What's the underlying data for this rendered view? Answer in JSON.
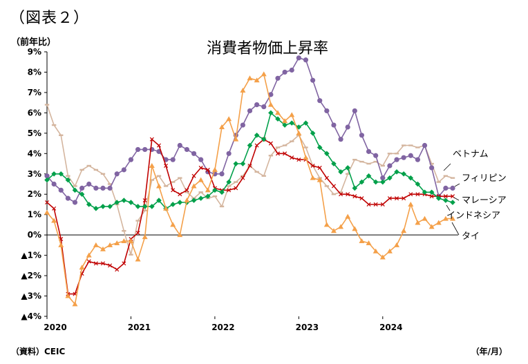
{
  "figure_label": "（図表２）",
  "y_unit_label": "（前年比）",
  "source_label": "（資料）CEIC",
  "x_unit_label": "（年/月）",
  "chart_data": {
    "type": "line",
    "title": "消費者物価上昇率",
    "ylim": [
      -4,
      9
    ],
    "yticks": [
      {
        "value": 9,
        "label": "9%"
      },
      {
        "value": 8,
        "label": "8%"
      },
      {
        "value": 7,
        "label": "7%"
      },
      {
        "value": 6,
        "label": "6%"
      },
      {
        "value": 5,
        "label": "5%"
      },
      {
        "value": 4,
        "label": "4%"
      },
      {
        "value": 3,
        "label": "3%"
      },
      {
        "value": 2,
        "label": "2%"
      },
      {
        "value": 1,
        "label": "1%"
      },
      {
        "value": 0,
        "label": "0%"
      },
      {
        "value": -1,
        "label": "▲1%"
      },
      {
        "value": -2,
        "label": "▲2%"
      },
      {
        "value": -3,
        "label": "▲3%"
      },
      {
        "value": -4,
        "label": "▲4%"
      }
    ],
    "xticks": [
      {
        "index": 0,
        "label": "2020"
      },
      {
        "index": 12,
        "label": "2021"
      },
      {
        "index": 24,
        "label": "2022"
      },
      {
        "index": 36,
        "label": "2023"
      },
      {
        "index": 48,
        "label": "2024"
      }
    ],
    "n_months": 59,
    "x_start": "2020-01",
    "grid": false,
    "series": [
      {
        "name": "ベトナム",
        "color": "#D4B59E",
        "marker": "dash",
        "values": [
          6.4,
          5.4,
          4.9,
          2.9,
          2.4,
          3.2,
          3.4,
          3.2,
          3.0,
          2.5,
          1.5,
          0.2,
          -0.97,
          0.7,
          1.2,
          2.7,
          2.9,
          2.4,
          2.6,
          2.8,
          2.1,
          1.8,
          2.1,
          1.8,
          1.9,
          1.4,
          2.4,
          2.6,
          2.9,
          3.4,
          3.1,
          2.9,
          3.9,
          4.3,
          4.4,
          4.6,
          4.9,
          4.3,
          3.4,
          2.8,
          2.4,
          2.0,
          2.1,
          3.0,
          3.7,
          3.6,
          3.5,
          3.6,
          3.4,
          4.0,
          4.0,
          4.4,
          4.4,
          4.3,
          4.4,
          3.5,
          2.6,
          2.9,
          2.8
        ]
      },
      {
        "name": "フィリピン",
        "color": "#8064A2",
        "marker": "circle",
        "values": [
          2.9,
          2.5,
          2.2,
          1.8,
          1.6,
          2.3,
          2.5,
          2.3,
          2.3,
          2.3,
          3.0,
          3.2,
          3.7,
          4.2,
          4.2,
          4.2,
          4.1,
          3.7,
          3.7,
          4.4,
          4.2,
          4.0,
          3.7,
          3.1,
          3.0,
          3.0,
          4.0,
          4.9,
          5.4,
          6.1,
          6.4,
          6.3,
          6.9,
          7.7,
          8.0,
          8.1,
          8.7,
          8.6,
          7.6,
          6.6,
          6.1,
          5.4,
          4.7,
          5.3,
          6.1,
          4.9,
          4.1,
          3.9,
          2.8,
          3.4,
          3.7,
          3.8,
          3.9,
          3.7,
          4.4,
          3.3,
          1.9,
          2.3,
          2.3
        ]
      },
      {
        "name": "マレーシア",
        "color": "#C00000",
        "marker": "x",
        "values": [
          1.6,
          1.3,
          -0.2,
          -2.9,
          -2.9,
          -1.9,
          -1.3,
          -1.4,
          -1.4,
          -1.5,
          -1.7,
          -1.4,
          -0.2,
          0.1,
          1.7,
          4.7,
          4.4,
          3.4,
          2.2,
          2.0,
          2.2,
          2.9,
          3.3,
          3.2,
          2.3,
          2.2,
          2.2,
          2.3,
          2.8,
          3.4,
          4.4,
          4.7,
          4.5,
          4.0,
          4.0,
          3.8,
          3.7,
          3.7,
          3.4,
          3.3,
          2.8,
          2.4,
          2.0,
          2.0,
          1.9,
          1.8,
          1.5,
          1.5,
          1.5,
          1.8,
          1.8,
          1.8,
          2.0,
          2.0,
          2.0,
          1.9,
          1.9,
          1.9,
          1.9
        ]
      },
      {
        "name": "インドネシア",
        "color": "#00A04A",
        "marker": "diamond",
        "values": [
          2.7,
          3.0,
          3.0,
          2.7,
          2.2,
          2.0,
          1.5,
          1.3,
          1.4,
          1.4,
          1.6,
          1.7,
          1.6,
          1.4,
          1.4,
          1.4,
          1.7,
          1.3,
          1.5,
          1.6,
          1.6,
          1.7,
          1.8,
          1.9,
          2.2,
          2.1,
          2.6,
          3.5,
          3.5,
          4.4,
          4.9,
          4.7,
          6.0,
          5.7,
          5.4,
          5.5,
          5.3,
          5.5,
          5.0,
          4.3,
          4.0,
          3.5,
          3.1,
          3.3,
          2.3,
          2.6,
          2.9,
          2.6,
          2.6,
          2.8,
          3.1,
          3.0,
          2.8,
          2.5,
          2.1,
          2.1,
          1.8,
          1.7,
          1.6
        ]
      },
      {
        "name": "タイ",
        "color": "#F4A049",
        "marker": "triangle",
        "values": [
          1.1,
          0.7,
          -0.5,
          -3.0,
          -3.4,
          -1.6,
          -1.0,
          -0.5,
          -0.7,
          -0.5,
          -0.4,
          -0.3,
          -0.3,
          -1.2,
          -0.1,
          3.4,
          2.4,
          1.3,
          0.5,
          0.0,
          1.7,
          2.4,
          2.7,
          2.2,
          3.2,
          5.3,
          5.7,
          4.7,
          7.1,
          7.7,
          7.6,
          7.9,
          6.4,
          6.0,
          5.6,
          5.9,
          5.0,
          3.8,
          2.8,
          2.7,
          0.5,
          0.2,
          0.4,
          0.9,
          0.3,
          -0.3,
          -0.4,
          -0.8,
          -1.1,
          -0.8,
          -0.5,
          0.2,
          1.5,
          0.6,
          0.8,
          0.4,
          0.6,
          0.8,
          0.8
        ]
      }
    ]
  }
}
